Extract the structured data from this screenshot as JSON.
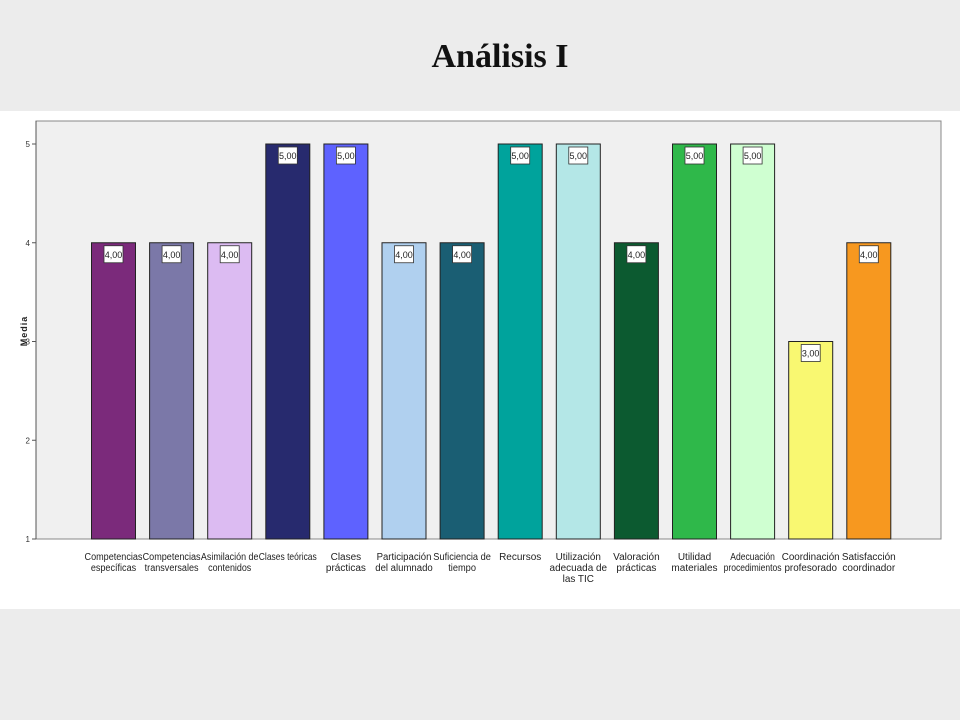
{
  "slide": {
    "title": "Análisis I"
  },
  "chart_data": {
    "type": "bar",
    "title": "",
    "xlabel": "",
    "ylabel": "Media",
    "ylim": [
      1,
      5
    ],
    "yticks": [
      "1",
      "2",
      "3",
      "4",
      "5"
    ],
    "categories": [
      [
        "Competencias",
        "específicas"
      ],
      [
        "Competencias",
        "transversales"
      ],
      [
        "Asimilación de",
        "contenidos"
      ],
      [
        "Clases teóricas"
      ],
      [
        "Clases",
        "prácticas"
      ],
      [
        "Participación",
        "del alumnado"
      ],
      [
        "Suficiencia de",
        "tiempo"
      ],
      [
        "Recursos"
      ],
      [
        "Utilización",
        "adecuada de",
        "las TIC"
      ],
      [
        "Valoración",
        "prácticas"
      ],
      [
        "Utilidad",
        "materiales"
      ],
      [
        "Adecuación",
        "procedimientos"
      ],
      [
        "Coordinación",
        "profesorado"
      ],
      [
        "Satisfacción",
        "coordinador"
      ]
    ],
    "values": [
      4,
      4,
      4,
      5,
      5,
      4,
      4,
      5,
      5,
      4,
      5,
      5,
      3,
      4
    ],
    "value_labels": [
      "4,00",
      "4,00",
      "4,00",
      "5,00",
      "5,00",
      "4,00",
      "4,00",
      "5,00",
      "5,00",
      "4,00",
      "5,00",
      "5,00",
      "3,00",
      "4,00"
    ],
    "colors": [
      "#7b2a7b",
      "#7b78a8",
      "#dcbbf2",
      "#272a6e",
      "#5e62ff",
      "#b0d0ef",
      "#1a5e73",
      "#00a39c",
      "#b4e7e7",
      "#0c5a30",
      "#2fb84a",
      "#cfffd1",
      "#f9f871",
      "#f7981f"
    ],
    "grid": false,
    "legend": "none"
  }
}
